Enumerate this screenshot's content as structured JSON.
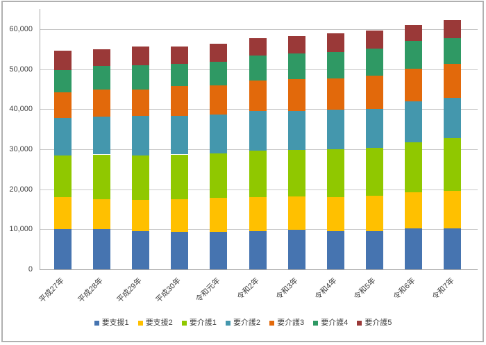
{
  "chart_data": {
    "type": "bar",
    "stacked": true,
    "title": "",
    "categories": [
      "平成27年",
      "平成28年",
      "平成29年",
      "平成30年",
      "令和元年",
      "令和2年",
      "令和3年",
      "令和4年",
      "令和5年",
      "令和6年",
      "令和7年"
    ],
    "series": [
      {
        "name": "要支援1",
        "color": "#4674B0",
        "values": [
          10000,
          10000,
          9500,
          9300,
          9400,
          9600,
          9800,
          9600,
          9600,
          10200,
          10300
        ]
      },
      {
        "name": "要支援2",
        "color": "#FFC000",
        "values": [
          8100,
          7600,
          7900,
          8300,
          8400,
          8400,
          8400,
          8400,
          8800,
          9000,
          9300
        ]
      },
      {
        "name": "要介護1",
        "color": "#90C800",
        "values": [
          10400,
          11100,
          11000,
          11100,
          11100,
          11700,
          11700,
          12000,
          11900,
          12600,
          13100
        ]
      },
      {
        "name": "要介護2",
        "color": "#4497AD",
        "values": [
          9300,
          9500,
          10000,
          9600,
          9700,
          9800,
          9600,
          9900,
          9800,
          10200,
          10200
        ]
      },
      {
        "name": "要介護3",
        "color": "#E2690B",
        "values": [
          6500,
          6700,
          6500,
          7500,
          7400,
          7600,
          8000,
          7800,
          8200,
          8200,
          8500
        ]
      },
      {
        "name": "要介護4",
        "color": "#2F9964",
        "values": [
          5500,
          5900,
          6100,
          5600,
          5800,
          6300,
          6400,
          6500,
          6900,
          6800,
          6400
        ]
      },
      {
        "name": "要介護5",
        "color": "#9A3938",
        "values": [
          4800,
          4200,
          4600,
          4300,
          4600,
          4300,
          4300,
          4700,
          4400,
          4100,
          4400
        ]
      }
    ],
    "xlabel": "",
    "ylabel": "",
    "ylim": [
      0,
      65000
    ],
    "y_major_unit": 10000,
    "y_ticks": [
      {
        "value": 0,
        "label": "0"
      },
      {
        "value": 10000,
        "label": "10,000"
      },
      {
        "value": 20000,
        "label": "20,000"
      },
      {
        "value": 30000,
        "label": "30,000"
      },
      {
        "value": 40000,
        "label": "40,000"
      },
      {
        "value": 50000,
        "label": "50,000"
      },
      {
        "value": 60000,
        "label": "60,000"
      }
    ],
    "grid": true,
    "legend_position": "bottom"
  },
  "colors": {
    "background": "#FFFFFF",
    "frame_border": "#B0B0B0",
    "gridline": "#C8C8C8",
    "axis_line": "#A6A6A6",
    "tick_text": "#404040",
    "legend_text": "#404040"
  }
}
